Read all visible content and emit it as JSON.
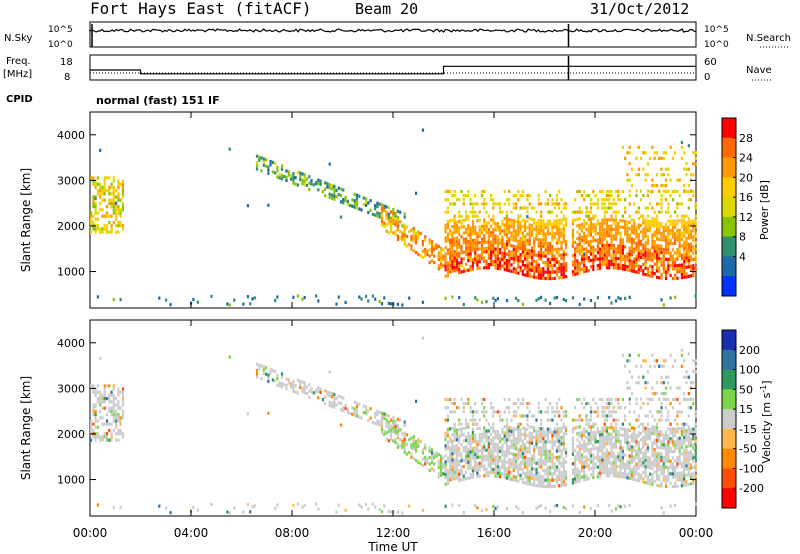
{
  "header": {
    "title": "Fort Hays East (fitACF)",
    "beam": "Beam 20",
    "date": "31/Oct/2012"
  },
  "panels": {
    "nsky_label": "N.Sky",
    "nsky_ticks": [
      "10^5",
      "10^0"
    ],
    "nsearch_label": "N.Search",
    "nsearch_ticks": [
      "10^5",
      "10^0"
    ],
    "freq_label_line1": "Freq.",
    "freq_label_line2": "[MHz]",
    "freq_ticks": [
      "18",
      "8"
    ],
    "nave_label": "Nave",
    "nave_ticks": [
      "60",
      "0"
    ],
    "cpid_label": "CPID",
    "cpid_value": "normal (fast) 151 IF"
  },
  "axes": {
    "ylabel": "Slant Range [km]",
    "xlabel": "Time UT",
    "yticks": [
      "4000",
      "3000",
      "2000",
      "1000"
    ],
    "xticks": [
      "00:00",
      "04:00",
      "08:00",
      "12:00",
      "16:00",
      "20:00",
      "00:00"
    ]
  },
  "colorbars": {
    "power": {
      "label": "Power [dB]",
      "ticks": [
        "28",
        "24",
        "20",
        "16",
        "12",
        "8",
        "4"
      ],
      "colors": [
        "#ff0000",
        "#ff6a00",
        "#ff9900",
        "#ffcc00",
        "#dcd800",
        "#88c400",
        "#2f8f6f",
        "#1d6aa8",
        "#0033ff"
      ]
    },
    "velocity": {
      "label_main": "Velocity [m s",
      "label_sup": "-1",
      "label_end": "]",
      "ticks": [
        "200",
        "100",
        "50",
        "15",
        "-15",
        "-50",
        "-100",
        "-200"
      ],
      "colors": [
        "#1a2fb0",
        "#2d74a0",
        "#2e9a5e",
        "#7cd64a",
        "#cccccc",
        "#ffb84d",
        "#ff8a00",
        "#ff5000",
        "#ff0000"
      ]
    }
  },
  "chart_data": [
    {
      "type": "heatmap",
      "title": "Fort Hays East (fitACF)",
      "subtitle": "Beam 20",
      "quantity": "Power [dB]",
      "xlabel": "Time UT",
      "ylabel": "Slant Range [km]",
      "x_range_hours": [
        0,
        24
      ],
      "y_range_km": [
        200,
        4500
      ],
      "value_range": [
        0,
        30
      ],
      "echo_regions": [
        {
          "t_start": 0.0,
          "t_end": 1.3,
          "r_low": 1900,
          "r_high": 3100,
          "power": 14
        },
        {
          "t_start": 6.5,
          "t_end": 12.5,
          "r_low_start": 3300,
          "r_low_end": 2000,
          "width_km": 300,
          "power": 8
        },
        {
          "t_start": 11.5,
          "t_end": 14.0,
          "r_low_start": 2000,
          "r_low_end": 1000,
          "width_km": 500,
          "power": 22
        },
        {
          "t_start": 14.0,
          "t_end": 18.8,
          "r_low": 1000,
          "r_high": 2200,
          "power": 26
        },
        {
          "t_start": 19.1,
          "t_end": 24.0,
          "r_low": 1000,
          "r_high": 2100,
          "power": 26
        },
        {
          "t_start": 14.0,
          "t_end": 23.5,
          "r_low": 2200,
          "r_high": 2800,
          "power": 16
        }
      ]
    },
    {
      "type": "heatmap",
      "quantity": "Velocity [m s^-1]",
      "xlabel": "Time UT",
      "ylabel": "Slant Range [km]",
      "x_range_hours": [
        0,
        24
      ],
      "y_range_km": [
        200,
        4500
      ],
      "value_range": [
        -200,
        200
      ],
      "dominant_value_band": "-15 to 15"
    },
    {
      "type": "line",
      "name": "Freq.",
      "ylabel": "Freq. [MHz]",
      "ylim": [
        8,
        18
      ],
      "x": [
        0,
        2,
        2,
        14,
        14,
        18.9,
        19.1,
        24
      ],
      "y": [
        12,
        12,
        10.5,
        10.5,
        13.5,
        13.5,
        13.5,
        13.5
      ]
    }
  ]
}
